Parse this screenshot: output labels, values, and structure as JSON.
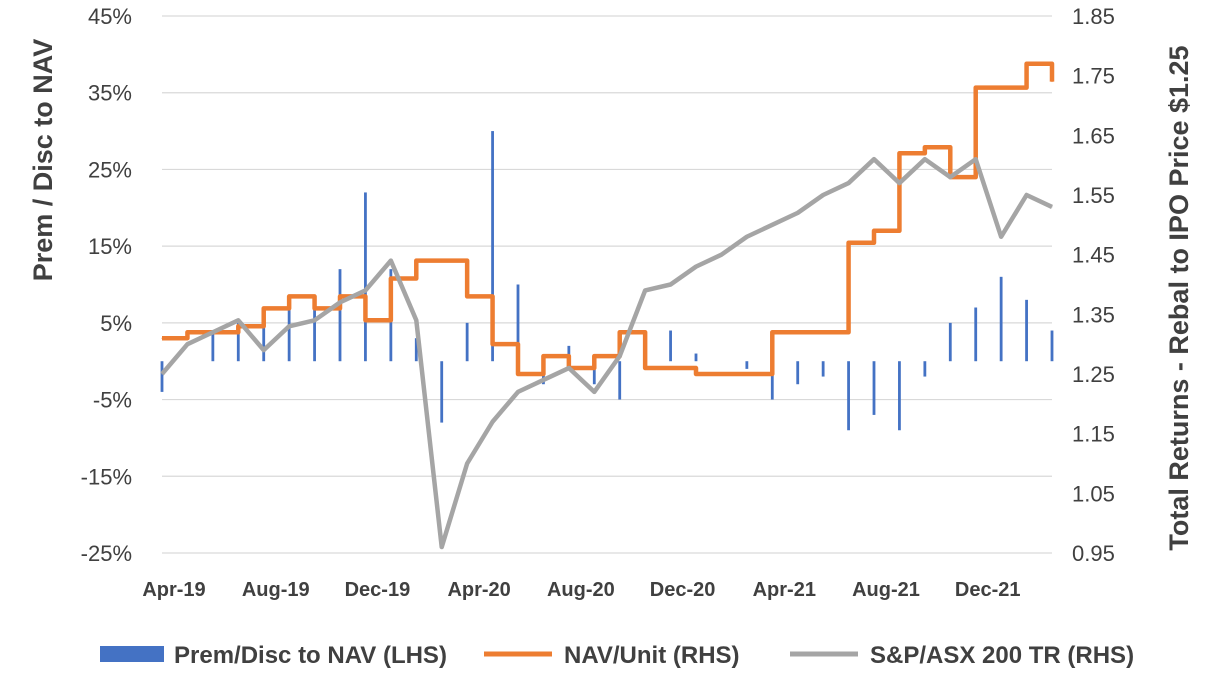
{
  "chart_data": {
    "type": "bar+line",
    "left_axis": {
      "title": "Prem / Disc to NAV",
      "range": [
        -25,
        45
      ],
      "tick_labels": [
        "45%",
        "35%",
        "25%",
        "15%",
        "5%",
        "-5%",
        "-15%",
        "-25%"
      ],
      "tick_values": [
        45,
        35,
        25,
        15,
        5,
        -5,
        -15,
        -25
      ]
    },
    "right_axis": {
      "title": "Total Returns - Rebal to IPO Price $1.25",
      "range": [
        0.95,
        1.85
      ],
      "tick_labels": [
        "1.85",
        "1.75",
        "1.65",
        "1.55",
        "1.45",
        "1.35",
        "1.25",
        "1.15",
        "1.05",
        "0.95"
      ],
      "tick_values": [
        1.85,
        1.75,
        1.65,
        1.55,
        1.45,
        1.35,
        1.25,
        1.15,
        1.05,
        0.95
      ]
    },
    "x_axis": {
      "range_months": [
        "Apr-19",
        "Mar-22"
      ],
      "tick_labels": [
        "Apr-19",
        "Aug-19",
        "Dec-19",
        "Apr-20",
        "Aug-20",
        "Dec-20",
        "Apr-21",
        "Aug-21",
        "Dec-21"
      ]
    },
    "grid": "horizontal",
    "legend_position": "bottom",
    "legend": [
      "Prem/Disc to NAV (LHS)",
      "NAV/Unit (RHS)",
      "S&P/ASX 200 TR (RHS)"
    ],
    "series": [
      {
        "name": "Prem/Disc to NAV (LHS)",
        "kind": "bar",
        "axis": "left",
        "color": "#4472C4",
        "points": [
          [
            "Apr-19",
            -4
          ],
          [
            "May-19",
            0
          ],
          [
            "Jun-19",
            4
          ],
          [
            "Jul-19",
            5
          ],
          [
            "Aug-19",
            6
          ],
          [
            "Sep-19",
            8
          ],
          [
            "Oct-19",
            8
          ],
          [
            "Nov-19",
            12
          ],
          [
            "Dec-19",
            22
          ],
          [
            "Jan-20",
            12
          ],
          [
            "Feb-20",
            3
          ],
          [
            "Mar-20",
            -8
          ],
          [
            "Apr-20",
            5
          ],
          [
            "May-20",
            30
          ],
          [
            "Jun-20",
            10
          ],
          [
            "Jul-20",
            -3
          ],
          [
            "Aug-20",
            2
          ],
          [
            "Sep-20",
            -3
          ],
          [
            "Oct-20",
            -5
          ],
          [
            "Nov-20",
            3
          ],
          [
            "Dec-20",
            4
          ],
          [
            "Jan-21",
            1
          ],
          [
            "Feb-21",
            0
          ],
          [
            "Mar-21",
            -1
          ],
          [
            "Apr-21",
            -5
          ],
          [
            "May-21",
            -3
          ],
          [
            "Jun-21",
            -2
          ],
          [
            "Jul-21",
            -9
          ],
          [
            "Aug-21",
            -7
          ],
          [
            "Sep-21",
            -9
          ],
          [
            "Oct-21",
            -2
          ],
          [
            "Nov-21",
            5
          ],
          [
            "Dec-21",
            7
          ],
          [
            "Jan-22",
            11
          ],
          [
            "Feb-22",
            8
          ],
          [
            "Mar-22",
            4
          ]
        ]
      },
      {
        "name": "NAV/Unit (RHS)",
        "kind": "line",
        "axis": "right",
        "color": "#ED7D31",
        "points": [
          [
            "Apr-19",
            1.31
          ],
          [
            "May-19",
            1.32
          ],
          [
            "Jul-19",
            1.33
          ],
          [
            "Aug-19",
            1.36
          ],
          [
            "Sep-19",
            1.38
          ],
          [
            "Oct-19",
            1.36
          ],
          [
            "Nov-19",
            1.38
          ],
          [
            "Dec-19",
            1.34
          ],
          [
            "Jan-20",
            1.41
          ],
          [
            "Feb-20",
            1.44
          ],
          [
            "Mar-20",
            1.44
          ],
          [
            "Apr-20",
            1.38
          ],
          [
            "May-20",
            1.3
          ],
          [
            "Jun-20",
            1.25
          ],
          [
            "Jul-20",
            1.28
          ],
          [
            "Aug-20",
            1.26
          ],
          [
            "Sep-20",
            1.28
          ],
          [
            "Oct-20",
            1.32
          ],
          [
            "Nov-20",
            1.26
          ],
          [
            "Jan-21",
            1.25
          ],
          [
            "Apr-21",
            1.32
          ],
          [
            "Jul-21",
            1.47
          ],
          [
            "Aug-21",
            1.49
          ],
          [
            "Sep-21",
            1.62
          ],
          [
            "Oct-21",
            1.63
          ],
          [
            "Nov-21",
            1.58
          ],
          [
            "Dec-21",
            1.73
          ],
          [
            "Jan-22",
            1.73
          ],
          [
            "Feb-22",
            1.77
          ],
          [
            "Mar-22",
            1.74
          ]
        ]
      },
      {
        "name": "S&P/ASX 200 TR (RHS)",
        "kind": "line",
        "axis": "right",
        "color": "#A5A5A5",
        "points": [
          [
            "Apr-19",
            1.25
          ],
          [
            "May-19",
            1.3
          ],
          [
            "Jun-19",
            1.32
          ],
          [
            "Jul-19",
            1.34
          ],
          [
            "Aug-19",
            1.29
          ],
          [
            "Sep-19",
            1.33
          ],
          [
            "Oct-19",
            1.34
          ],
          [
            "Nov-19",
            1.37
          ],
          [
            "Dec-19",
            1.39
          ],
          [
            "Jan-20",
            1.44
          ],
          [
            "Feb-20",
            1.34
          ],
          [
            "Mar-20",
            0.96
          ],
          [
            "Apr-20",
            1.1
          ],
          [
            "May-20",
            1.17
          ],
          [
            "Jun-20",
            1.22
          ],
          [
            "Jul-20",
            1.24
          ],
          [
            "Aug-20",
            1.26
          ],
          [
            "Sep-20",
            1.22
          ],
          [
            "Oct-20",
            1.28
          ],
          [
            "Nov-20",
            1.39
          ],
          [
            "Dec-20",
            1.4
          ],
          [
            "Jan-21",
            1.43
          ],
          [
            "Feb-21",
            1.45
          ],
          [
            "Mar-21",
            1.48
          ],
          [
            "Apr-21",
            1.5
          ],
          [
            "May-21",
            1.52
          ],
          [
            "Jun-21",
            1.55
          ],
          [
            "Jul-21",
            1.57
          ],
          [
            "Aug-21",
            1.61
          ],
          [
            "Sep-21",
            1.57
          ],
          [
            "Oct-21",
            1.61
          ],
          [
            "Nov-21",
            1.58
          ],
          [
            "Dec-21",
            1.61
          ],
          [
            "Jan-22",
            1.48
          ],
          [
            "Feb-22",
            1.55
          ],
          [
            "Mar-22",
            1.53
          ]
        ]
      }
    ]
  }
}
